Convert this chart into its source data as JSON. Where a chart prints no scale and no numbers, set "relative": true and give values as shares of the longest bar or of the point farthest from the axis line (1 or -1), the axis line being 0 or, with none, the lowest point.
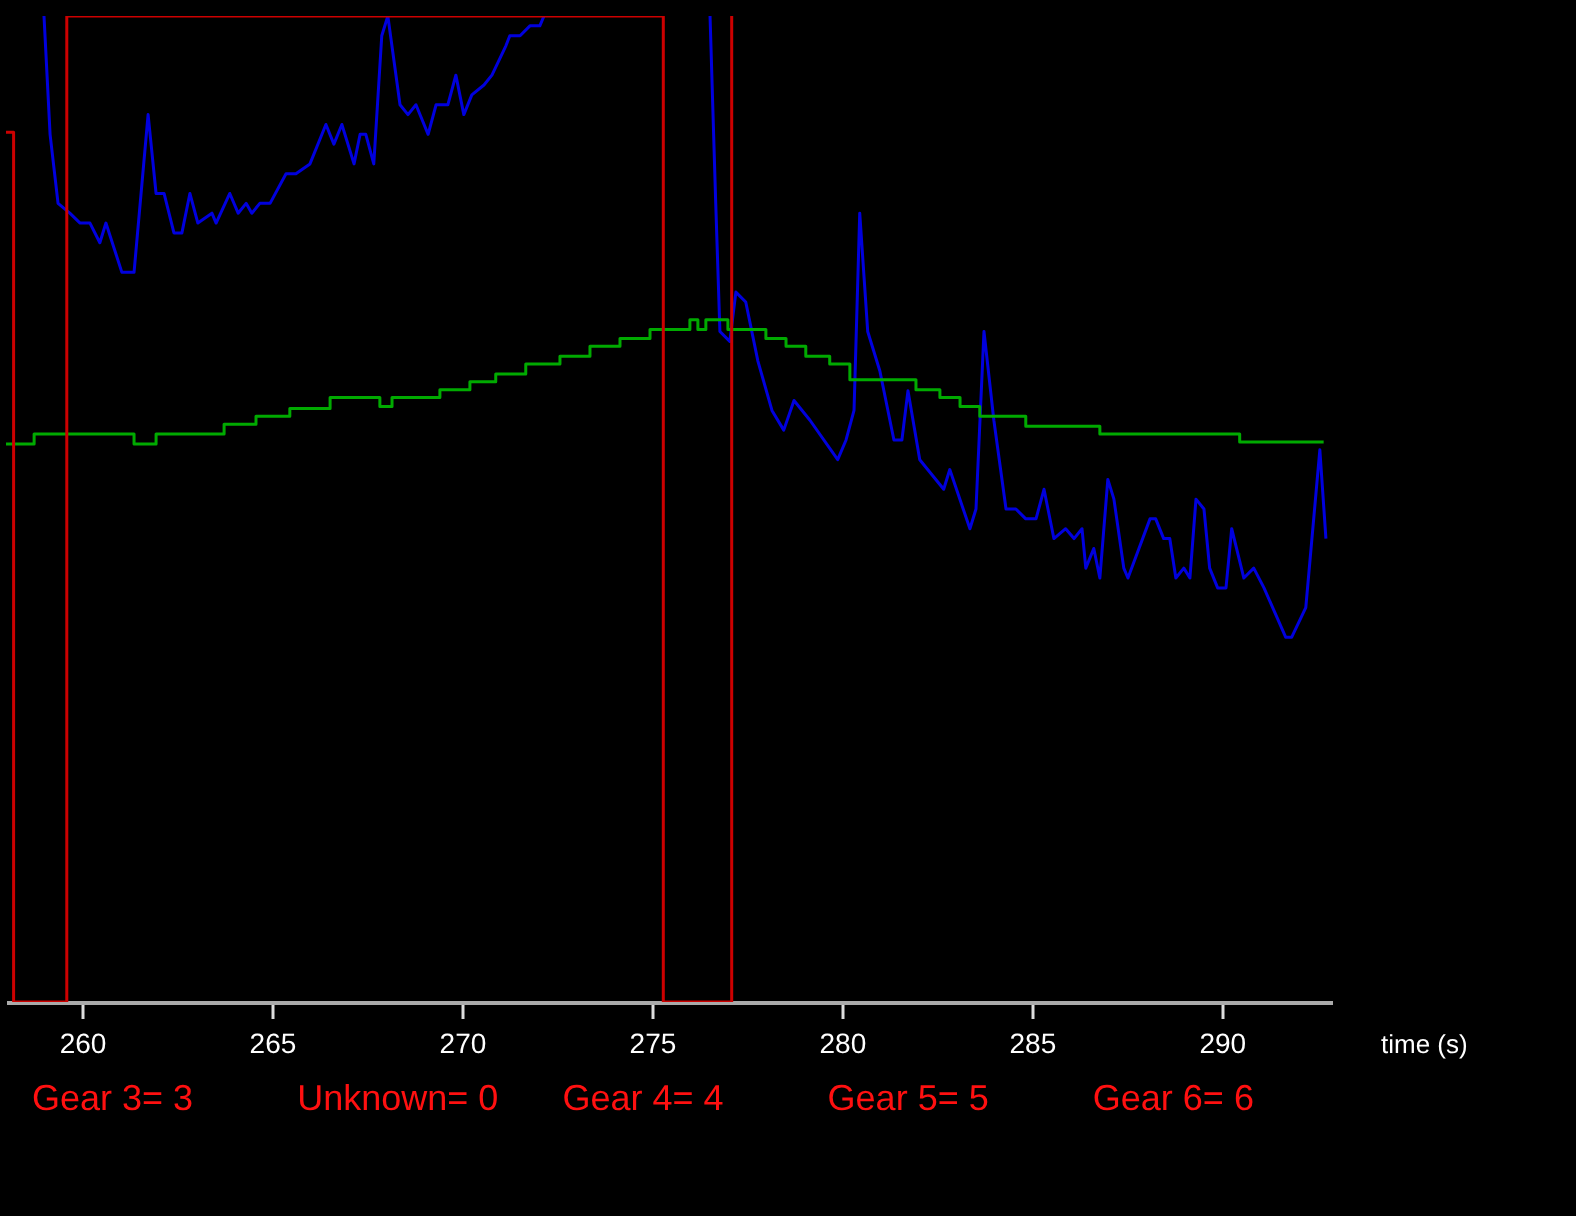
{
  "chart_data": {
    "type": "line",
    "xlabel": "time (s)",
    "relative": true,
    "xlim": [
      258.0,
      292.9
    ],
    "xticks": [
      260,
      265,
      270,
      275,
      280,
      285,
      290
    ],
    "grid": false,
    "annotations": [
      "Gear 3= 3",
      "Unknown= 0",
      "Gear 4= 4",
      "Gear 5= 5",
      "Gear 6= 6"
    ],
    "series": [
      {
        "color": "#0000dd",
        "x": [
          259.0,
          259.16,
          259.37,
          259.68,
          259.95,
          260.21,
          260.47,
          260.63,
          261.05,
          261.37,
          261.74,
          261.95,
          262.16,
          262.42,
          262.63,
          262.84,
          263.05,
          263.42,
          263.53,
          263.89,
          264.11,
          264.32,
          264.47,
          264.68,
          264.95,
          265.37,
          265.63,
          266.0,
          266.42,
          266.63,
          266.84,
          267.16,
          267.32,
          267.47,
          267.68,
          267.89,
          268.05,
          268.37,
          268.58,
          268.79,
          269.11,
          269.32,
          269.63,
          269.84,
          270.05,
          270.26,
          270.58,
          270.79,
          271.16,
          271.26,
          271.53,
          271.79,
          272.05,
          272.16,
          274.0,
          276.53,
          276.68,
          276.79,
          277.05,
          277.21,
          277.47,
          277.79,
          278.16,
          278.47,
          278.74,
          279.16,
          279.89,
          280.11,
          280.32,
          280.47,
          280.68,
          281.0,
          281.37,
          281.58,
          281.74,
          282.05,
          282.68,
          282.84,
          283.37,
          283.53,
          283.74,
          284.0,
          284.32,
          284.58,
          284.84,
          285.11,
          285.32,
          285.58,
          285.89,
          286.11,
          286.32,
          286.42,
          286.63,
          286.79,
          287.0,
          287.16,
          287.42,
          287.53,
          288.11,
          288.26,
          288.47,
          288.63,
          288.79,
          289.0,
          289.16,
          289.32,
          289.53,
          289.68,
          289.89,
          290.11,
          290.26,
          290.58,
          290.84,
          291.11,
          291.68,
          291.84,
          292.21,
          292.58,
          292.74
        ],
        "values": [
          1.0,
          0.88,
          0.81,
          0.8,
          0.79,
          0.79,
          0.77,
          0.79,
          0.74,
          0.74,
          0.9,
          0.82,
          0.82,
          0.78,
          0.78,
          0.82,
          0.79,
          0.8,
          0.79,
          0.82,
          0.8,
          0.81,
          0.8,
          0.81,
          0.81,
          0.84,
          0.84,
          0.85,
          0.89,
          0.87,
          0.89,
          0.85,
          0.88,
          0.88,
          0.85,
          0.98,
          1.0,
          0.91,
          0.9,
          0.91,
          0.88,
          0.91,
          0.91,
          0.94,
          0.9,
          0.92,
          0.93,
          0.94,
          0.97,
          0.98,
          0.98,
          0.99,
          0.99,
          1.0,
          null,
          1.0,
          0.81,
          0.68,
          0.67,
          0.72,
          0.71,
          0.65,
          0.6,
          0.58,
          0.61,
          0.59,
          0.55,
          0.57,
          0.6,
          0.8,
          0.68,
          0.64,
          0.57,
          0.57,
          0.62,
          0.55,
          0.52,
          0.54,
          0.48,
          0.5,
          0.68,
          0.59,
          0.5,
          0.5,
          0.49,
          0.49,
          0.52,
          0.47,
          0.48,
          0.47,
          0.48,
          0.44,
          0.46,
          0.43,
          0.53,
          0.51,
          0.44,
          0.43,
          0.49,
          0.49,
          0.47,
          0.47,
          0.43,
          0.44,
          0.43,
          0.51,
          0.5,
          0.44,
          0.42,
          0.42,
          0.48,
          0.43,
          0.44,
          0.42,
          0.37,
          0.37,
          0.4,
          0.56,
          0.47
        ]
      },
      {
        "type": "step",
        "color": "#00aa00",
        "x": [
          258.0,
          258.74,
          261.37,
          261.95,
          263.74,
          264.58,
          265.47,
          266.53,
          267.84,
          268.16,
          269.42,
          270.21,
          270.89,
          271.68,
          272.58,
          273.37,
          274.16,
          274.95,
          276.0,
          276.21,
          276.42,
          277.0,
          278.0,
          278.53,
          279.05,
          279.68,
          280.21,
          281.95,
          282.58,
          283.11,
          283.63,
          284.84,
          286.79,
          290.47,
          292.68
        ],
        "values": [
          0.566,
          0.576,
          0.566,
          0.576,
          0.586,
          0.594,
          0.602,
          0.613,
          0.604,
          0.613,
          0.621,
          0.629,
          0.637,
          0.647,
          0.655,
          0.665,
          0.673,
          0.682,
          0.692,
          0.682,
          0.692,
          0.682,
          0.673,
          0.665,
          0.655,
          0.647,
          0.631,
          0.621,
          0.613,
          0.604,
          0.594,
          0.584,
          0.576,
          0.568,
          0.568
        ]
      },
      {
        "type": "step",
        "color": "#cc0000",
        "x": [
          258.0,
          258.2,
          259.6,
          275.3,
          277.1
        ],
        "values": [
          0.882,
          0,
          1.0,
          0,
          1.0
        ]
      }
    ]
  }
}
